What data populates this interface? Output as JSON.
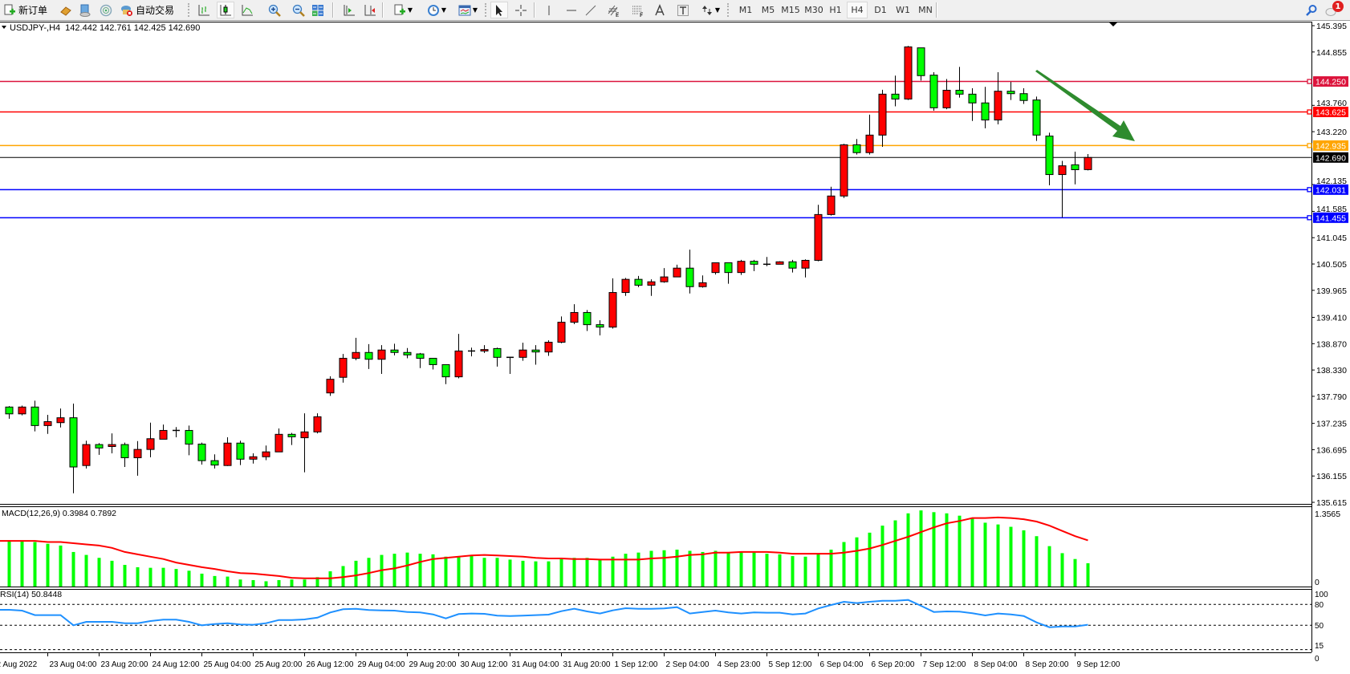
{
  "toolbar": {
    "new_order_label": "新订单",
    "auto_trading_label": "自动交易",
    "timeframes": [
      "M1",
      "M5",
      "M15",
      "M30",
      "H1",
      "H4",
      "D1",
      "W1",
      "MN"
    ],
    "active_timeframe": "H4",
    "notification_count": "1"
  },
  "chart_header": {
    "symbol": "USDJPY-,H4",
    "ohlc": "142.442 142.761 142.425 142.690"
  },
  "colors": {
    "bull_candle": "#ff0000",
    "bear_candle": "#00ff00",
    "macd_histogram": "#00ff00",
    "macd_signal": "#ff0000",
    "rsi_line": "#1e90ff",
    "arrow": "#2e8b2e"
  },
  "chart_data": {
    "type": "candlestick",
    "symbol": "USDJPY-",
    "timeframe": "H4",
    "ylim": [
      135.615,
      145.395
    ],
    "price_axis_ticks": [
      "145.395",
      "144.855",
      "143.760",
      "143.220",
      "142.135",
      "141.585",
      "141.045",
      "140.505",
      "139.965",
      "139.410",
      "138.870",
      "138.330",
      "137.790",
      "137.235",
      "136.695",
      "136.155",
      "135.615"
    ],
    "time_axis_labels": [
      "22 Aug 2022",
      "23 Aug 04:00",
      "23 Aug 20:00",
      "24 Aug 12:00",
      "25 Aug 04:00",
      "25 Aug 20:00",
      "26 Aug 12:00",
      "29 Aug 04:00",
      "29 Aug 20:00",
      "30 Aug 12:00",
      "31 Aug 04:00",
      "31 Aug 20:00",
      "1 Sep 12:00",
      "2 Sep 04:00",
      "4 Sep 23:00",
      "5 Sep 12:00",
      "6 Sep 04:00",
      "6 Sep 20:00",
      "7 Sep 12:00",
      "8 Sep 04:00",
      "8 Sep 20:00",
      "9 Sep 12:00"
    ],
    "ohlc_fields": [
      "open",
      "high",
      "low",
      "close"
    ],
    "candles": [
      [
        137.57,
        137.59,
        137.33,
        137.43
      ],
      [
        137.43,
        137.6,
        137.4,
        137.57
      ],
      [
        137.57,
        137.7,
        137.07,
        137.19
      ],
      [
        137.19,
        137.41,
        137.02,
        137.27
      ],
      [
        137.25,
        137.54,
        137.15,
        137.35
      ],
      [
        137.35,
        137.64,
        135.8,
        136.34
      ],
      [
        136.37,
        136.88,
        136.31,
        136.8
      ],
      [
        136.8,
        136.83,
        136.59,
        136.73
      ],
      [
        136.76,
        137.03,
        136.62,
        136.8
      ],
      [
        136.8,
        136.84,
        136.34,
        136.53
      ],
      [
        136.53,
        136.87,
        136.16,
        136.7
      ],
      [
        136.7,
        137.25,
        136.54,
        136.92
      ],
      [
        136.91,
        137.21,
        136.91,
        137.09
      ],
      [
        137.09,
        137.16,
        136.95,
        137.09
      ],
      [
        137.09,
        137.19,
        136.58,
        136.81
      ],
      [
        136.81,
        136.84,
        136.39,
        136.47
      ],
      [
        136.47,
        136.6,
        136.31,
        136.38
      ],
      [
        136.37,
        136.95,
        136.36,
        136.83
      ],
      [
        136.83,
        136.88,
        136.38,
        136.5
      ],
      [
        136.5,
        136.62,
        136.41,
        136.55
      ],
      [
        136.55,
        136.78,
        136.48,
        136.65
      ],
      [
        136.65,
        137.13,
        136.65,
        137.01
      ],
      [
        137.01,
        137.04,
        136.79,
        136.96
      ],
      [
        136.94,
        137.44,
        136.23,
        137.06
      ],
      [
        137.06,
        137.44,
        137.03,
        137.37
      ],
      [
        137.86,
        138.2,
        137.8,
        138.14
      ],
      [
        138.18,
        138.66,
        138.07,
        138.57
      ],
      [
        138.57,
        138.99,
        138.53,
        138.69
      ],
      [
        138.69,
        138.86,
        138.35,
        138.55
      ],
      [
        138.55,
        138.84,
        138.25,
        138.74
      ],
      [
        138.74,
        138.87,
        138.63,
        138.69
      ],
      [
        138.69,
        138.78,
        138.57,
        138.64
      ],
      [
        138.66,
        138.68,
        138.37,
        138.57
      ],
      [
        138.57,
        138.57,
        138.34,
        138.44
      ],
      [
        138.44,
        138.44,
        138.04,
        138.19
      ],
      [
        138.19,
        139.07,
        138.16,
        138.72
      ],
      [
        138.71,
        138.79,
        138.61,
        138.72
      ],
      [
        138.72,
        138.84,
        138.68,
        138.75
      ],
      [
        138.77,
        138.79,
        138.4,
        138.59
      ],
      [
        138.59,
        138.6,
        138.25,
        138.59
      ],
      [
        138.59,
        138.89,
        138.52,
        138.74
      ],
      [
        138.74,
        138.84,
        138.44,
        138.7
      ],
      [
        138.7,
        138.94,
        138.62,
        138.9
      ],
      [
        138.9,
        139.43,
        138.88,
        139.31
      ],
      [
        139.31,
        139.68,
        139.27,
        139.51
      ],
      [
        139.51,
        139.56,
        139.13,
        139.26
      ],
      [
        139.26,
        139.35,
        139.04,
        139.21
      ],
      [
        139.21,
        140.21,
        139.18,
        139.92
      ],
      [
        139.92,
        140.22,
        139.85,
        140.19
      ],
      [
        140.19,
        140.26,
        140.03,
        140.07
      ],
      [
        140.07,
        140.19,
        139.85,
        140.14
      ],
      [
        140.14,
        140.42,
        140.12,
        140.24
      ],
      [
        140.24,
        140.49,
        140.24,
        140.42
      ],
      [
        140.42,
        140.8,
        139.9,
        140.04
      ],
      [
        140.04,
        140.27,
        140.02,
        140.12
      ],
      [
        140.33,
        140.53,
        140.29,
        140.53
      ],
      [
        140.53,
        140.53,
        140.1,
        140.33
      ],
      [
        140.33,
        140.59,
        140.28,
        140.56
      ],
      [
        140.56,
        140.59,
        140.36,
        140.5
      ],
      [
        140.5,
        140.65,
        140.46,
        140.5
      ],
      [
        140.5,
        140.56,
        140.5,
        140.55
      ],
      [
        140.55,
        140.59,
        140.33,
        140.42
      ],
      [
        140.42,
        140.6,
        140.23,
        140.58
      ],
      [
        140.58,
        141.72,
        140.56,
        141.52
      ],
      [
        141.52,
        142.09,
        141.5,
        141.9
      ],
      [
        141.9,
        142.97,
        141.86,
        142.95
      ],
      [
        142.95,
        143.07,
        142.75,
        142.79
      ],
      [
        142.79,
        143.57,
        142.75,
        143.15
      ],
      [
        143.15,
        144.08,
        142.91,
        143.99
      ],
      [
        143.99,
        144.37,
        143.74,
        143.89
      ],
      [
        143.89,
        144.98,
        143.87,
        144.96
      ],
      [
        144.94,
        144.94,
        144.27,
        144.37
      ],
      [
        144.38,
        144.44,
        143.65,
        143.71
      ],
      [
        143.71,
        144.3,
        143.68,
        144.07
      ],
      [
        144.07,
        144.55,
        143.92,
        143.99
      ],
      [
        143.99,
        144.11,
        143.44,
        143.81
      ],
      [
        143.81,
        144.14,
        143.29,
        143.46
      ],
      [
        143.46,
        144.44,
        143.37,
        144.05
      ],
      [
        144.05,
        144.24,
        143.87,
        144.0
      ],
      [
        144.0,
        144.11,
        143.79,
        143.86
      ],
      [
        143.87,
        143.94,
        143.03,
        143.15
      ],
      [
        143.13,
        143.2,
        142.12,
        142.34
      ],
      [
        142.34,
        142.62,
        141.46,
        142.52
      ],
      [
        142.54,
        142.81,
        142.14,
        142.44
      ],
      [
        142.442,
        142.761,
        142.425,
        142.69
      ]
    ],
    "bid_line": {
      "price": "142.690",
      "color": "#000000"
    },
    "horizontal_levels": [
      {
        "price": "144.250",
        "color": "#dc143c"
      },
      {
        "price": "143.625",
        "color": "#ff0000"
      },
      {
        "price": "142.935",
        "color": "#ffa500"
      },
      {
        "price": "142.031",
        "color": "#0000ff"
      },
      {
        "price": "141.455",
        "color": "#0000ff"
      }
    ],
    "macd": {
      "label": "MACD(12,26,9) 0.3984 0.7892",
      "axis_max_label": "1.3565",
      "axis_zero_label": "0",
      "max": 1.3565,
      "histogram": [
        0.79,
        0.79,
        0.76,
        0.73,
        0.7,
        0.59,
        0.54,
        0.49,
        0.44,
        0.37,
        0.33,
        0.32,
        0.32,
        0.3,
        0.27,
        0.22,
        0.18,
        0.17,
        0.12,
        0.11,
        0.09,
        0.11,
        0.12,
        0.12,
        0.16,
        0.26,
        0.35,
        0.44,
        0.49,
        0.54,
        0.56,
        0.58,
        0.56,
        0.55,
        0.51,
        0.52,
        0.52,
        0.49,
        0.49,
        0.46,
        0.44,
        0.43,
        0.43,
        0.47,
        0.49,
        0.49,
        0.46,
        0.51,
        0.56,
        0.58,
        0.61,
        0.62,
        0.63,
        0.61,
        0.59,
        0.61,
        0.59,
        0.59,
        0.58,
        0.56,
        0.55,
        0.52,
        0.51,
        0.55,
        0.63,
        0.76,
        0.84,
        0.92,
        1.04,
        1.13,
        1.25,
        1.3,
        1.27,
        1.25,
        1.21,
        1.16,
        1.09,
        1.06,
        1.02,
        0.96,
        0.86,
        0.69,
        0.57,
        0.47,
        0.3984
      ],
      "signal": [
        0.78,
        0.78,
        0.78,
        0.76,
        0.76,
        0.74,
        0.72,
        0.7,
        0.66,
        0.59,
        0.55,
        0.51,
        0.47,
        0.41,
        0.37,
        0.33,
        0.3,
        0.26,
        0.23,
        0.22,
        0.2,
        0.18,
        0.15,
        0.14,
        0.14,
        0.14,
        0.16,
        0.19,
        0.23,
        0.28,
        0.31,
        0.36,
        0.42,
        0.47,
        0.49,
        0.51,
        0.53,
        0.54,
        0.53,
        0.52,
        0.51,
        0.49,
        0.48,
        0.48,
        0.47,
        0.47,
        0.46,
        0.46,
        0.46,
        0.46,
        0.48,
        0.49,
        0.51,
        0.54,
        0.55,
        0.58,
        0.58,
        0.59,
        0.59,
        0.59,
        0.58,
        0.56,
        0.56,
        0.56,
        0.56,
        0.58,
        0.61,
        0.65,
        0.71,
        0.78,
        0.85,
        0.93,
        1.01,
        1.08,
        1.12,
        1.17,
        1.17,
        1.18,
        1.17,
        1.15,
        1.11,
        1.04,
        0.95,
        0.86,
        0.7892
      ]
    },
    "rsi": {
      "label": "RSI(14) 50.8448",
      "axis_labels": [
        "100",
        "80",
        "50",
        "15",
        "0"
      ],
      "levels": [
        80,
        50,
        15
      ],
      "values": [
        72.3,
        71.1,
        64.6,
        64.6,
        64.6,
        50.0,
        55.0,
        55.0,
        55.0,
        53.0,
        53.0,
        56.1,
        58.1,
        58.1,
        55.0,
        50.0,
        51.9,
        53.0,
        51.1,
        50.8,
        53.0,
        57.6,
        57.6,
        58.4,
        61.0,
        68.4,
        73.1,
        73.8,
        71.9,
        71.5,
        71.1,
        69.1,
        68.4,
        65.7,
        59.9,
        66.1,
        66.9,
        66.5,
        63.8,
        63.4,
        63.8,
        64.6,
        65.3,
        70.3,
        73.8,
        70.0,
        66.9,
        71.5,
        74.6,
        73.8,
        73.8,
        74.2,
        76.1,
        66.9,
        69.1,
        71.1,
        68.4,
        66.9,
        68.4,
        68.1,
        68.1,
        65.7,
        66.9,
        74.2,
        79.2,
        83.8,
        81.9,
        83.8,
        85.3,
        85.3,
        86.5,
        78.0,
        69.2,
        69.9,
        69.6,
        67.3,
        64.2,
        66.9,
        65.7,
        63.4,
        54.2,
        47.2,
        48.4,
        48.4,
        50.8448
      ]
    }
  }
}
